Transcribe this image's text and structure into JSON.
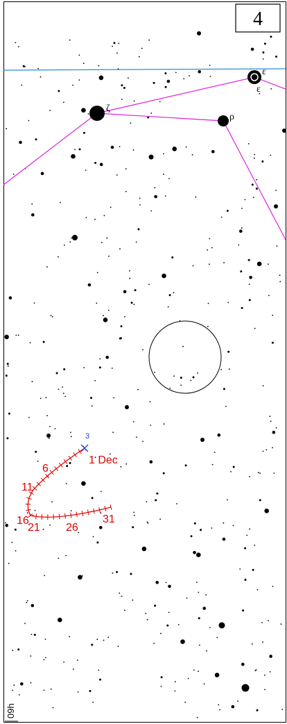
{
  "page_number": "4",
  "star_labels": {
    "epsilon_upper": "ε",
    "epsilon_lower": "ε",
    "zeta": "ζ",
    "rho": "ρ"
  },
  "comet_path": {
    "marker_label": "3",
    "date_labels": [
      "1 Dec",
      "6",
      "11",
      "16",
      "21",
      "26",
      "31"
    ]
  },
  "ra_label": "09h"
}
